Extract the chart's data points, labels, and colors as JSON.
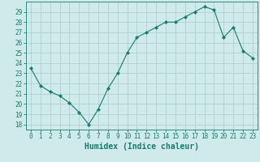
{
  "x": [
    0,
    1,
    2,
    3,
    4,
    5,
    6,
    7,
    8,
    9,
    10,
    11,
    12,
    13,
    14,
    15,
    16,
    17,
    18,
    19,
    20,
    21,
    22,
    23
  ],
  "y": [
    23.5,
    21.8,
    21.2,
    20.8,
    20.1,
    19.2,
    18.0,
    19.5,
    21.5,
    23.0,
    25.0,
    26.5,
    27.0,
    27.5,
    28.0,
    28.0,
    28.5,
    29.0,
    29.5,
    29.2,
    26.5,
    27.5,
    25.2,
    24.5
  ],
  "line_color": "#1a7a6e",
  "marker": "D",
  "marker_size": 2.2,
  "bg_color": "#ceeaea",
  "grid_color": "#b0d0d0",
  "xlabel": "Humidex (Indice chaleur)",
  "xlim": [
    -0.5,
    23.5
  ],
  "ylim": [
    17.5,
    30.0
  ],
  "yticks": [
    18,
    19,
    20,
    21,
    22,
    23,
    24,
    25,
    26,
    27,
    28,
    29
  ],
  "xticks": [
    0,
    1,
    2,
    3,
    4,
    5,
    6,
    7,
    8,
    9,
    10,
    11,
    12,
    13,
    14,
    15,
    16,
    17,
    18,
    19,
    20,
    21,
    22,
    23
  ],
  "tick_label_fontsize": 5.5,
  "xlabel_fontsize": 7.0,
  "axis_color": "#1a7a6e",
  "tick_color": "#1a7a6e"
}
